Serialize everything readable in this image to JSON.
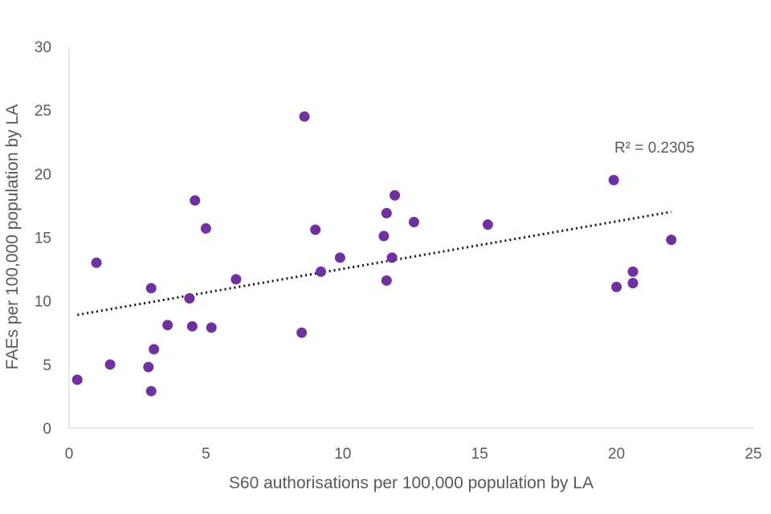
{
  "chart_data": {
    "type": "scatter",
    "xlabel": "S60 authorisations per 100,000 population by LA",
    "ylabel": "FAEs per 100,000 population by LA",
    "xlim": [
      0,
      25
    ],
    "ylim": [
      0,
      30
    ],
    "x_ticks": [
      0,
      5,
      10,
      15,
      20,
      25
    ],
    "y_ticks": [
      0,
      5,
      10,
      15,
      20,
      25,
      30
    ],
    "grid": false,
    "point_color": "#7030a0",
    "trendline": {
      "style": "dotted",
      "color": "#222222",
      "from": [
        0.3,
        8.9
      ],
      "to": [
        22.0,
        17.0
      ]
    },
    "annotation": "R² = 0.2305",
    "series": [
      {
        "points": [
          {
            "x": 0.3,
            "y": 3.8
          },
          {
            "x": 1.0,
            "y": 13.0
          },
          {
            "x": 1.5,
            "y": 5.0
          },
          {
            "x": 2.9,
            "y": 4.8
          },
          {
            "x": 3.0,
            "y": 11.0
          },
          {
            "x": 3.0,
            "y": 2.9
          },
          {
            "x": 3.1,
            "y": 6.2
          },
          {
            "x": 3.6,
            "y": 8.1
          },
          {
            "x": 4.4,
            "y": 10.2
          },
          {
            "x": 4.5,
            "y": 8.0
          },
          {
            "x": 4.6,
            "y": 17.9
          },
          {
            "x": 5.0,
            "y": 15.7
          },
          {
            "x": 5.2,
            "y": 7.9
          },
          {
            "x": 6.1,
            "y": 11.7
          },
          {
            "x": 8.5,
            "y": 7.5
          },
          {
            "x": 8.6,
            "y": 24.5
          },
          {
            "x": 9.0,
            "y": 15.6
          },
          {
            "x": 9.2,
            "y": 12.3
          },
          {
            "x": 9.9,
            "y": 13.4
          },
          {
            "x": 11.5,
            "y": 15.1
          },
          {
            "x": 11.6,
            "y": 16.9
          },
          {
            "x": 11.6,
            "y": 11.6
          },
          {
            "x": 11.8,
            "y": 13.4
          },
          {
            "x": 11.9,
            "y": 18.3
          },
          {
            "x": 12.6,
            "y": 16.2
          },
          {
            "x": 15.3,
            "y": 16.0
          },
          {
            "x": 19.9,
            "y": 19.5
          },
          {
            "x": 20.0,
            "y": 11.1
          },
          {
            "x": 20.6,
            "y": 12.3
          },
          {
            "x": 20.6,
            "y": 11.4
          },
          {
            "x": 22.0,
            "y": 14.8
          }
        ]
      }
    ]
  }
}
